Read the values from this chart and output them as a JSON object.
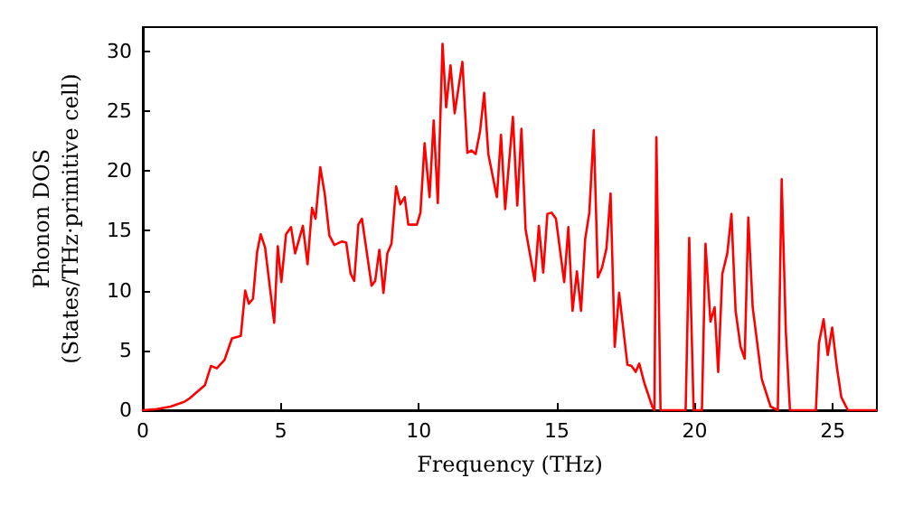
{
  "chart_data": {
    "type": "line",
    "xlabel": "Frequency (THz)",
    "ylabel": "Phonon DOS\n(States/THz·primitive cell)",
    "xlim": [
      0,
      26.6
    ],
    "xticks": [
      0,
      5,
      10,
      15,
      20,
      25
    ],
    "ylim": [
      0,
      32
    ],
    "yticks": [
      0,
      5,
      10,
      15,
      20,
      25,
      30
    ],
    "grid": false,
    "marker": "none",
    "line_style": "solid",
    "series": [
      {
        "color": "#ff0000",
        "x": [
          0,
          0.5,
          1.0,
          1.5,
          1.7,
          2.25,
          2.47,
          2.68,
          2.96,
          3.23,
          3.55,
          3.71,
          3.84,
          3.99,
          4.14,
          4.27,
          4.43,
          4.76,
          4.89,
          5.02,
          5.19,
          5.37,
          5.52,
          5.8,
          5.97,
          6.13,
          6.26,
          6.43,
          6.59,
          6.76,
          6.94,
          7.22,
          7.37,
          7.53,
          7.66,
          7.81,
          7.94,
          8.29,
          8.42,
          8.57,
          8.72,
          8.86,
          9.01,
          9.18,
          9.33,
          9.49,
          9.62,
          9.93,
          10.06,
          10.21,
          10.39,
          10.54,
          10.69,
          10.86,
          10.99,
          11.15,
          11.3,
          11.58,
          11.76,
          11.91,
          12.06,
          12.22,
          12.37,
          12.52,
          12.83,
          12.98,
          13.13,
          13.41,
          13.57,
          13.72,
          13.87,
          14.2,
          14.35,
          14.51,
          14.66,
          14.81,
          14.97,
          15.27,
          15.42,
          15.57,
          15.73,
          15.88,
          16.03,
          16.18,
          16.34,
          16.49,
          16.64,
          16.8,
          16.95,
          17.1,
          17.26,
          17.56,
          17.71,
          17.86,
          17.99,
          18.17,
          18.46,
          18.54,
          18.61,
          18.76,
          19.67,
          19.8,
          19.96,
          20.26,
          20.39,
          20.57,
          20.72,
          20.85,
          21.0,
          21.18,
          21.33,
          21.48,
          21.66,
          21.81,
          21.94,
          22.1,
          22.43,
          22.75,
          23.01,
          23.15,
          23.3,
          23.45,
          24.39,
          24.5,
          24.67,
          24.82,
          24.98,
          25.15,
          25.31,
          25.44,
          25.55,
          26.57
        ],
        "values": [
          0,
          0.1,
          0.3,
          0.7,
          1.0,
          2.1,
          3.7,
          3.5,
          4.2,
          6.0,
          6.2,
          10.0,
          8.9,
          9.3,
          13.2,
          14.7,
          13.6,
          7.3,
          13.7,
          10.7,
          14.7,
          15.3,
          13.1,
          15.4,
          12.2,
          16.9,
          16.0,
          20.3,
          18.1,
          14.6,
          13.8,
          14.1,
          14.0,
          11.4,
          10.8,
          15.5,
          16.0,
          10.4,
          10.8,
          13.4,
          9.8,
          13.1,
          13.9,
          18.7,
          17.2,
          17.8,
          15.5,
          15.5,
          16.5,
          22.3,
          17.8,
          24.2,
          17.3,
          30.6,
          25.3,
          28.8,
          24.8,
          29.1,
          21.5,
          21.7,
          21.4,
          23.3,
          26.5,
          21.4,
          17.8,
          23.0,
          16.8,
          24.5,
          17.1,
          23.5,
          15.1,
          10.8,
          15.4,
          11.5,
          16.4,
          16.5,
          16.0,
          10.7,
          15.3,
          8.3,
          11.6,
          8.3,
          14.3,
          16.5,
          23.4,
          11.1,
          11.9,
          13.5,
          18.1,
          5.3,
          9.8,
          3.8,
          3.7,
          3.2,
          3.9,
          2.3,
          0.3,
          0,
          22.8,
          0,
          0,
          14.4,
          0,
          0,
          13.9,
          7.4,
          8.6,
          3.2,
          11.4,
          13.1,
          16.4,
          8.3,
          5.3,
          4.3,
          16.1,
          8.6,
          2.6,
          0.3,
          0,
          19.3,
          6.6,
          0,
          0,
          5.6,
          7.6,
          4.6,
          6.9,
          3.6,
          1.1,
          0.5,
          0,
          0
        ]
      }
    ]
  }
}
